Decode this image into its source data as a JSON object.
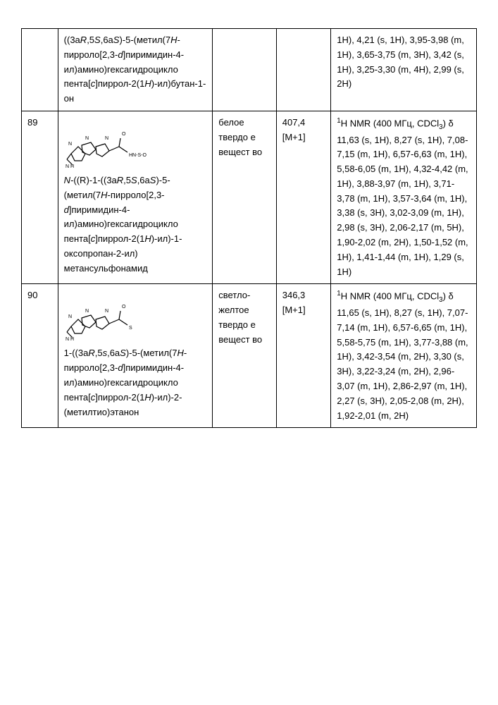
{
  "rows": [
    {
      "num": "",
      "name_html": "((3a<i>R</i>,5<i>S</i>,6a<i>S</i>)-5-(метил(7<i>H</i>-пирроло[2,3-<i>d</i>]пиримидин-4-ил)амино)гексагидроцикло пента[<i>c</i>]пиррол-2(1<i>H</i>)-ил)бутан-1-он",
      "appearance": "",
      "mass": "",
      "nmr_html": "1H), 4,21 (s, 1H), 3,95-3,98 (m, 1H), 3,65-3,75 (m, 3H), 3,42 (s, 1H), 3,25-3,30 (m, 4H), 2,99 (s, 2H)",
      "has_struct": false
    },
    {
      "num": "89",
      "name_html": "<i>N</i>-((R)-1-((3a<i>R</i>,5<i>S</i>,6a<i>S</i>)-5-(метил(7<i>H</i>-пирроло[2,3-<i>d</i>]пиримидин-4-ил)амино)гексагидроцикло пента[<i>c</i>]пиррол-2(1<i>H</i>)-ил)-1-оксопропан-2-ил) метансульфонамид",
      "appearance": "белое твердо е вещест во",
      "mass": "407,4 [M+1]",
      "nmr_html": "<sup>1</sup>H NMR (400 МГц, CDCl<sub>3</sub>) δ 11,63 (s, 1H), 8,27 (s, 1H), 7,08-7,15 (m, 1H), 6,57-6,63 (m, 1H), 5,58-6,05 (m, 1H), 4,32-4,42 (m, 1H), 3,88-3,97 (m, 1H), 3,71-3,78 (m, 1H), 3,57-3,64 (m, 1H), 3,38 (s, 3H), 3,02-3,09 (m, 1H), 2,98 (s, 3H), 2,06-2,17 (m, 5H), 1,90-2,02 (m, 2H), 1,50-1,52 (m, 1H), 1,41-1,44 (m, 1H), 1,29 (s, 1H)",
      "has_struct": true,
      "struct_label": "HN-S-O"
    },
    {
      "num": "90",
      "name_html": "1-((3a<i>R</i>,5<i>s</i>,6a<i>S</i>)-5-(метил(7<i>H</i>-пирроло[2,3-<i>d</i>]пиримидин-4-ил)амино)гексагидроцикло пента[<i>c</i>]пиррол-2(1<i>H</i>)-ил)-2-(метилтио)этанон",
      "appearance": "светло-желтое твердо е вещест во",
      "mass": "346,3 [M+1]",
      "nmr_html": "<sup>1</sup>H NMR (400 МГц, CDCl<sub>3</sub>) δ 11,65 (s, 1H), 8,27 (s, 1H), 7,07-7,14 (m, 1H), 6,57-6,65 (m, 1H), 5,58-5,75 (m, 1H), 3,77-3,88 (m, 1H), 3,42-3,54 (m, 2H), 3,30 (s, 3H), 3,22-3,24 (m, 2H), 2,96-3,07 (m, 1H), 2,86-2,97 (m, 1H), 2,27 (s, 3H), 2,05-2,08 (m, 2H), 1,92-2,01 (m, 2H)",
      "has_struct": true,
      "struct_label": "S"
    }
  ]
}
